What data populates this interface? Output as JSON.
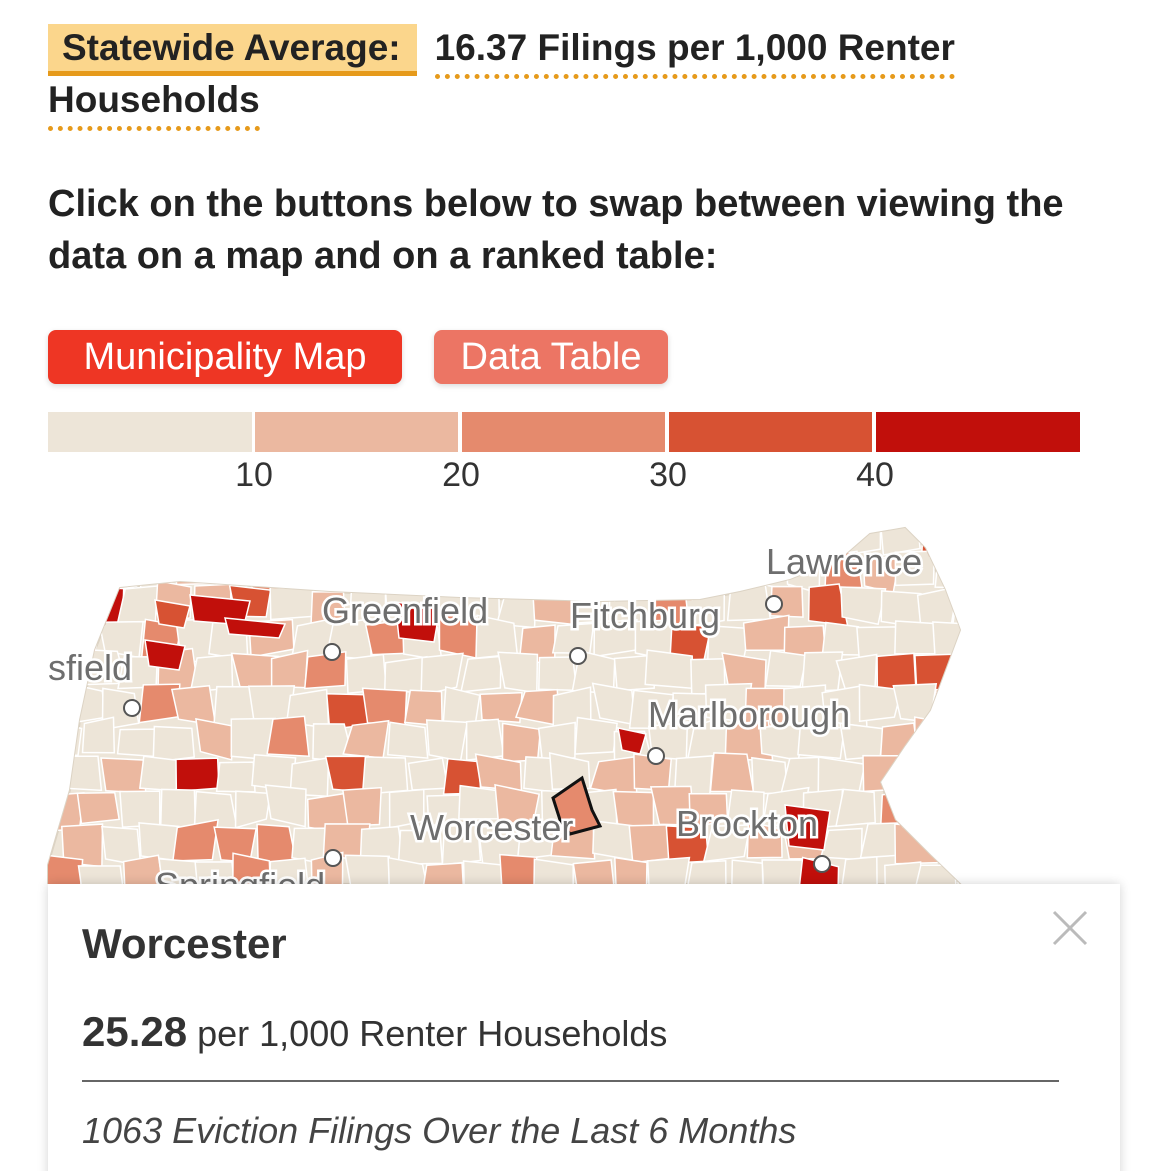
{
  "header": {
    "avg_label": "Statewide Average:",
    "avg_value": "16.37 Filings per 1,000 Renter Households"
  },
  "instructions": "Click on the buttons below to swap between viewing the data on a map and on a ranked table:",
  "buttons": {
    "map_label": "Municipality Map",
    "table_label": "Data Table",
    "active": "map"
  },
  "legend": {
    "ticks": [
      "10",
      "20",
      "30",
      "40"
    ],
    "colors": [
      "#ede5d8",
      "#ebb8a0",
      "#e58a6d",
      "#d75233",
      "#c10f0b"
    ]
  },
  "map": {
    "labels": {
      "lawrence": "Lawrence",
      "greenfield": "Greenfield",
      "fitchburg": "Fitchburg",
      "pittsfield_partial": "sfield",
      "marlborough": "Marlborough",
      "worcester": "Worcester",
      "brockton": "Brockton",
      "springfield_partial": "Springfield"
    },
    "selected": "Worcester",
    "base_color": "#ede5d8",
    "border_color": "#ffffff"
  },
  "tooltip": {
    "title": "Worcester",
    "rate": "25.28",
    "rate_unit": "per 1,000 Renter Households",
    "filings": "1063 Eviction Filings Over the Last 6 Months",
    "close_icon": "close-icon"
  }
}
